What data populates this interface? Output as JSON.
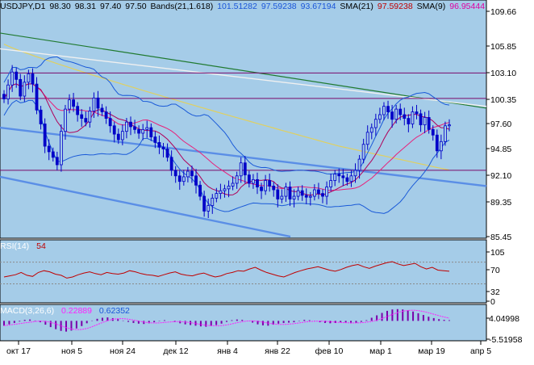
{
  "colors": {
    "plot_bg": "#a5cce8",
    "frame": "#000000",
    "candle": "#0000c8",
    "sma21": "#e8207a",
    "sma9": "#b0005a",
    "sma_long_white": "#f0f0f0",
    "sma_long_yellow": "#e0d060",
    "trend_green": "#207a30",
    "channel_blue": "#5a8ee6",
    "hline": "#7a0a6a",
    "bands": "#1a5ad8",
    "rsi": "#c00000",
    "rsi_level": "#8a8a8a",
    "macd_hist": "#7a00aa",
    "macd_signal": "#ff20ff",
    "label_dark": "#000000",
    "label_blue": "#1a55d8",
    "label_red": "#c00000",
    "label_pink": "#e000a0",
    "label_white": "#ffffff"
  },
  "main_header": [
    {
      "text": "USDJPY,D1",
      "color_key": "label_dark"
    },
    {
      "text": "98.30",
      "color_key": "label_dark"
    },
    {
      "text": "98.31",
      "color_key": "label_dark"
    },
    {
      "text": "97.40",
      "color_key": "label_dark"
    },
    {
      "text": "97.50",
      "color_key": "label_dark"
    },
    {
      "text": "Bands(21,1.618)",
      "color_key": "label_dark"
    },
    {
      "text": "101.51282",
      "color_key": "label_blue"
    },
    {
      "text": "97.59238",
      "color_key": "label_blue"
    },
    {
      "text": "93.67194",
      "color_key": "label_blue"
    },
    {
      "text": "SMA(21)",
      "color_key": "label_dark"
    },
    {
      "text": "97.59238",
      "color_key": "label_red"
    },
    {
      "text": "SMA(9)",
      "color_key": "label_dark"
    },
    {
      "text": "96.95444",
      "color_key": "label_pink"
    }
  ],
  "rsi_header": {
    "label": "RSI(14)",
    "value": "54"
  },
  "macd_header": {
    "label": "MACD(3,26,6)",
    "value": "0.22889",
    "signal": "0.62352"
  },
  "price_axis": [
    "109.66",
    "105.85",
    "103.10",
    "100.35",
    "97.60",
    "94.85",
    "92.10",
    "89.35",
    "85.45"
  ],
  "rsi_axis": [
    "105",
    "70",
    "32",
    "0"
  ],
  "macd_axis": [
    "4.04998",
    "-5.51958"
  ],
  "date_axis": [
    "окт 17",
    "ноя 5",
    "ноя 24",
    "дек 12",
    "янв 4",
    "янв 22",
    "фев 10",
    "мар 1",
    "мар 19",
    "апр 5"
  ],
  "horizontal_levels": [
    103.1,
    100.35,
    92.6
  ],
  "chart_data": [
    {
      "type": "candlestick",
      "symbol": "USDJPY",
      "timeframe": "D1",
      "header_values": {
        "last_open": 98.3,
        "last_high": 98.31,
        "last_low": 97.4,
        "last_close": 97.5
      },
      "closes": [
        100.3,
        101.8,
        103.2,
        102.4,
        100.6,
        102.1,
        103.0,
        101.9,
        99.1,
        97.6,
        95.2,
        94.6,
        94.0,
        93.2,
        96.8,
        99.2,
        100.2,
        99.5,
        98.6,
        98.2,
        97.8,
        99.0,
        100.4,
        99.3,
        98.9,
        98.2,
        97.4,
        96.5,
        95.9,
        96.8,
        97.8,
        97.3,
        97.0,
        96.6,
        97.0,
        97.2,
        96.2,
        95.6,
        95.1,
        94.9,
        94.0,
        92.6,
        92.0,
        91.4,
        91.9,
        92.5,
        92.0,
        91.0,
        89.8,
        88.2,
        88.8,
        89.6,
        90.1,
        90.4,
        90.6,
        90.9,
        91.2,
        92.0,
        93.4,
        92.1,
        91.2,
        91.6,
        90.8,
        90.4,
        91.5,
        90.9,
        90.5,
        89.5,
        89.8,
        90.8,
        89.5,
        89.8,
        90.4,
        89.9,
        89.7,
        89.8,
        90.5,
        90.1,
        89.8,
        90.8,
        91.5,
        92.2,
        92.0,
        91.8,
        91.4,
        92.0,
        92.6,
        93.8,
        95.4,
        96.7,
        97.2,
        98.1,
        98.6,
        99.5,
        98.9,
        98.1,
        99.2,
        98.6,
        98.2,
        97.6,
        98.9,
        98.7,
        97.5,
        98.3,
        97.0,
        96.4,
        94.7,
        95.7,
        97.4,
        97.5
      ],
      "price_range": [
        85.45,
        109.66
      ],
      "overlays": [
        {
          "name": "Bands(21,1.618)",
          "values_shown": [
            101.51282,
            97.59238,
            93.67194
          ]
        },
        {
          "name": "SMA(21)",
          "value_shown": 97.59238
        },
        {
          "name": "SMA(9)",
          "value_shown": 96.95444
        }
      ]
    },
    {
      "type": "line",
      "name": "RSI(14)",
      "last_value": 54,
      "y_range": [
        0,
        105
      ],
      "levels": [
        70,
        32
      ],
      "values": [
        44,
        46,
        48,
        52,
        47,
        45,
        52,
        55,
        53,
        49,
        47,
        42,
        44,
        48,
        51,
        53,
        50,
        48,
        52,
        50,
        49,
        51,
        55,
        53,
        50,
        48,
        47,
        45,
        48,
        51,
        53,
        49,
        47,
        46,
        49,
        51,
        47,
        44,
        46,
        50,
        52,
        55,
        54,
        58,
        61,
        56,
        52,
        49,
        46,
        44,
        48,
        52,
        55,
        58,
        60,
        62,
        59,
        56,
        54,
        57,
        61,
        64,
        66,
        62,
        59,
        63,
        66,
        69,
        71,
        67,
        64,
        66,
        68,
        62,
        58,
        61,
        56,
        55,
        54
      ]
    },
    {
      "type": "bar+line",
      "name": "MACD(3,26,6)",
      "main_value": 0.22889,
      "signal_value": 0.62352,
      "y_range": [
        -5.51958,
        4.04998
      ],
      "values": [
        -1.4,
        -1.0,
        -0.6,
        -0.2,
        0.3,
        0.4,
        0.1,
        -0.4,
        -1.1,
        -1.8,
        -2.4,
        -2.9,
        -3.1,
        -2.8,
        -2.2,
        -1.5,
        -0.7,
        0.1,
        0.6,
        0.9,
        1.0,
        0.8,
        0.5,
        0.1,
        -0.3,
        -0.6,
        -0.8,
        -0.9,
        -0.7,
        -0.4,
        -0.1,
        0.2,
        0.0,
        -0.3,
        -0.7,
        -1.0,
        -1.2,
        -1.4,
        -1.6,
        -1.7,
        -1.5,
        -1.2,
        -0.8,
        -0.3,
        0.2,
        0.4,
        0.3,
        0.0,
        -0.5,
        -1.0,
        -1.3,
        -1.4,
        -1.1,
        -0.8,
        -0.6,
        -0.5,
        -0.4,
        -0.1,
        0.3,
        0.2,
        -0.1,
        -0.4,
        -0.6,
        -0.7,
        -0.6,
        -0.4,
        -0.5,
        -0.7,
        -0.6,
        -0.3,
        0.2,
        0.9,
        1.6,
        2.3,
        2.9,
        3.3,
        3.4,
        3.3,
        3.0,
        2.7,
        2.2,
        1.7,
        1.2,
        0.8,
        0.5,
        0.3,
        0.2
      ]
    }
  ]
}
